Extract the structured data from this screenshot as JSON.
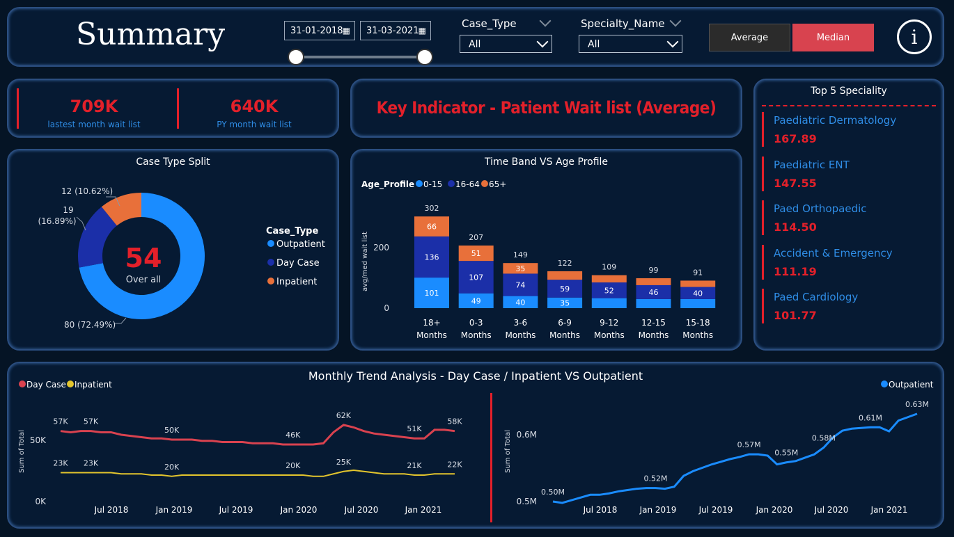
{
  "header": {
    "title": "Summary",
    "date_start": "31-01-2018",
    "date_end": "31-03-2021",
    "case_type_label": "Case_Type",
    "case_type_value": "All",
    "specialty_label": "Specialty_Name",
    "specialty_value": "All",
    "btn_average": "Average",
    "btn_median": "Median",
    "info_icon": "i"
  },
  "kpi": {
    "latest_value": "709K",
    "latest_label": "lastest month wait list",
    "py_value": "640K",
    "py_label": "PY month wait list"
  },
  "key_indicator": "Key Indicator - Patient Wait list (Average)",
  "top5": {
    "title": "Top 5 Speciality",
    "items": [
      {
        "name": "Paediatric Dermatology",
        "value": "167.89"
      },
      {
        "name": "Paediatric ENT",
        "value": "147.55"
      },
      {
        "name": "Paed Orthopaedic",
        "value": "114.50"
      },
      {
        "name": "Accident & Emergency",
        "value": "111.19"
      },
      {
        "name": "Paed Cardiology",
        "value": "101.77"
      }
    ]
  },
  "colors": {
    "outpatient": "#1a8cff",
    "day_case": "#1b2fa8",
    "inpatient": "#e8703a",
    "band_0_15": "#1a8cff",
    "band_16_64": "#1b2fa8",
    "band_65": "#e8703a",
    "trend_day_case": "#d9424f",
    "trend_inpatient": "#e3c52d",
    "trend_outpatient": "#1a8cff",
    "accent_red": "#e3202a"
  },
  "chart_data": [
    {
      "type": "pie",
      "title": "Case Type Split",
      "center_value": "54",
      "center_label": "Over all",
      "legend_title": "Case_Type",
      "slices": [
        {
          "name": "Outpatient",
          "value": 80,
          "label": "80 (72.49%)"
        },
        {
          "name": "Day Case",
          "value": 19,
          "label_line1": "19",
          "label_line2": "(16.89%)"
        },
        {
          "name": "Inpatient",
          "value": 12,
          "label": "12 (10.62%)"
        }
      ]
    },
    {
      "type": "bar",
      "stacked": true,
      "title": "Time Band VS Age Profile",
      "legend_title": "Age_Profile",
      "ylabel": "avg/med wait list",
      "yticks": [
        0,
        200
      ],
      "categories": [
        [
          "18+",
          "Months"
        ],
        [
          "0-3",
          "Months"
        ],
        [
          "3-6",
          "Months"
        ],
        [
          "6-9",
          "Months"
        ],
        [
          "9-12",
          "Months"
        ],
        [
          "12-15",
          "Months"
        ],
        [
          "15-18",
          "Months"
        ]
      ],
      "totals": [
        302,
        207,
        149,
        122,
        109,
        99,
        91
      ],
      "series": [
        {
          "name": "0-15",
          "values": [
            101,
            49,
            40,
            35,
            33,
            30,
            30
          ],
          "labels": [
            "101",
            "49",
            "40",
            "35",
            "",
            "",
            ""
          ]
        },
        {
          "name": "16-64",
          "values": [
            136,
            107,
            74,
            59,
            52,
            46,
            40
          ],
          "labels": [
            "136",
            "107",
            "74",
            "59",
            "52",
            "46",
            "40"
          ]
        },
        {
          "name": "65+",
          "values": [
            66,
            51,
            35,
            28,
            24,
            23,
            21
          ],
          "labels": [
            "66",
            "51",
            "35",
            "",
            "",
            "",
            ""
          ]
        }
      ]
    },
    {
      "type": "line",
      "title": "Monthly Trend Analysis - Day Case / Inpatient VS Outpatient",
      "ylabel": "Sum of Total",
      "yticks": [
        "0K",
        "50K"
      ],
      "xticks": [
        "Jul 2018",
        "Jan 2019",
        "Jul 2019",
        "Jan 2020",
        "Jul 2020",
        "Jan 2021"
      ],
      "series": [
        {
          "name": "Day Case",
          "values": [
            57,
            56,
            57,
            57,
            56,
            56,
            54,
            53,
            52,
            51,
            51,
            50,
            50,
            50,
            49,
            49,
            48,
            48,
            48,
            47,
            47,
            47,
            46,
            46,
            46,
            46,
            47,
            56,
            62,
            60,
            57,
            55,
            54,
            53,
            52,
            51,
            51,
            58,
            58,
            57
          ]
        },
        {
          "name": "Inpatient",
          "values": [
            23,
            23,
            23,
            23,
            23,
            23,
            22,
            22,
            22,
            21,
            21,
            20,
            21,
            21,
            21,
            21,
            21,
            21,
            21,
            21,
            21,
            21,
            21,
            21,
            21,
            20,
            20,
            22,
            24,
            25,
            24,
            23,
            22,
            22,
            22,
            21,
            21,
            22,
            22,
            22
          ]
        },
        {
          "name": "Outpatient",
          "values": [
            0.5,
            0.498,
            0.502,
            0.506,
            0.51,
            0.51,
            0.512,
            0.515,
            0.517,
            0.519,
            0.52,
            0.52,
            0.519,
            0.522,
            0.538,
            0.545,
            0.55,
            0.555,
            0.559,
            0.563,
            0.566,
            0.57,
            0.57,
            0.568,
            0.555,
            0.558,
            0.56,
            0.565,
            0.57,
            0.58,
            0.595,
            0.605,
            0.608,
            0.609,
            0.61,
            0.61,
            0.604,
            0.62,
            0.625,
            0.63
          ]
        }
      ],
      "labels_daycase": [
        "57K",
        "57K",
        "50K",
        "46K",
        "62K",
        "51K",
        "58K"
      ],
      "labels_inpatient": [
        "23K",
        "23K",
        "20K",
        "20K",
        "25K",
        "21K",
        "22K"
      ],
      "labels_outpatient": [
        "0.50M",
        "0.52M",
        "0.57M",
        "0.55M",
        "0.58M",
        "0.61M",
        "0.63M"
      ],
      "yticks_outpatient": [
        "0.5M",
        "0.6M"
      ]
    }
  ]
}
